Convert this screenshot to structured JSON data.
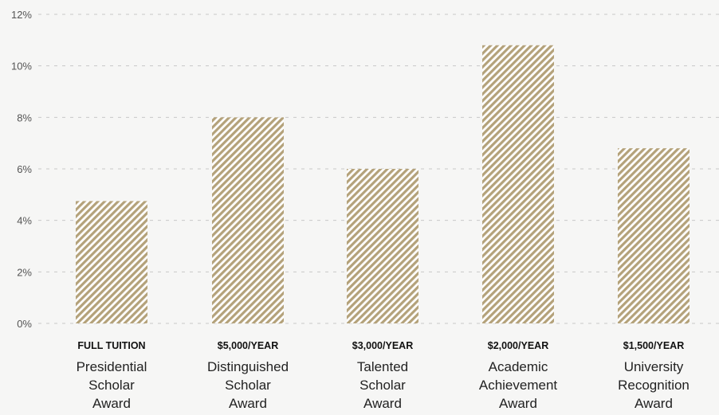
{
  "colors": {
    "background": "#f6f6f5",
    "bar_stripe": "#b4a27a",
    "bar_gap": "#ffffff",
    "grid": "#c8c8c8"
  },
  "chart_data": {
    "type": "bar",
    "title": "",
    "xlabel": "",
    "ylabel": "",
    "ylim": [
      0,
      12
    ],
    "yticks": [
      "0%",
      "2%",
      "4%",
      "6%",
      "8%",
      "10%",
      "12%"
    ],
    "ytick_values": [
      0,
      2,
      4,
      6,
      8,
      10,
      12
    ],
    "grid": true,
    "fill_pattern": "diagonal-stripes",
    "categories": [
      {
        "amount": "FULL TUITION",
        "name": [
          "Presidential",
          "Scholar",
          "Award"
        ]
      },
      {
        "amount": "$5,000/YEAR",
        "name": [
          "Distinguished",
          "Scholar",
          "Award"
        ]
      },
      {
        "amount": "$3,000/YEAR",
        "name": [
          "Talented",
          "Scholar",
          "Award"
        ]
      },
      {
        "amount": "$2,000/YEAR",
        "name": [
          "Academic",
          "Achievement",
          "Award"
        ]
      },
      {
        "amount": "$1,500/YEAR",
        "name": [
          "University",
          "Recognition",
          "Award"
        ]
      }
    ],
    "values": [
      4.75,
      8.0,
      6.0,
      10.8,
      6.8
    ]
  }
}
